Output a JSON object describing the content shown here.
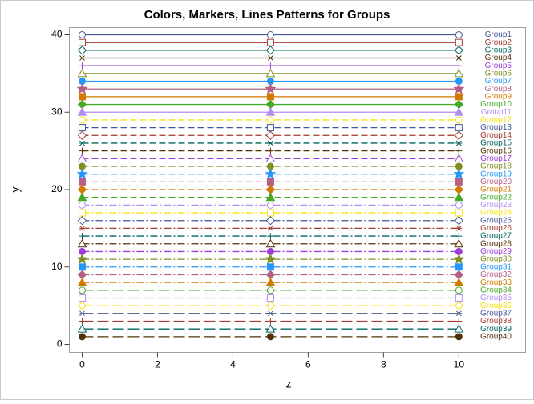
{
  "chart_data": {
    "type": "line",
    "title": "Colors, Markers, Lines Patterns for Groups",
    "x_label": "z",
    "y_label": "y",
    "x": [
      0,
      5,
      10
    ],
    "xlim": [
      -0.34,
      11.77
    ],
    "ylim": [
      -1.03,
      40.93
    ],
    "xticks": [
      0,
      2,
      4,
      6,
      8,
      10
    ],
    "yticks": [
      0,
      10,
      20,
      30,
      40
    ],
    "series": [
      {
        "name": "Group1",
        "color": "#445694",
        "values": [
          40,
          40,
          40
        ]
      },
      {
        "name": "Group2",
        "color": "#A23A2E",
        "values": [
          39,
          39,
          39
        ]
      },
      {
        "name": "Group3",
        "color": "#01665E",
        "values": [
          38,
          38,
          38
        ]
      },
      {
        "name": "Group4",
        "color": "#543005",
        "values": [
          37,
          37,
          37
        ]
      },
      {
        "name": "Group5",
        "color": "#9D3CDB",
        "values": [
          36,
          36,
          36
        ]
      },
      {
        "name": "Group6",
        "color": "#7F8E1F",
        "values": [
          35,
          35,
          35
        ]
      },
      {
        "name": "Group7",
        "color": "#2597FA",
        "values": [
          34,
          34,
          34
        ]
      },
      {
        "name": "Group8",
        "color": "#B26084",
        "values": [
          33,
          33,
          33
        ]
      },
      {
        "name": "Group9",
        "color": "#D17800",
        "values": [
          32,
          32,
          32
        ]
      },
      {
        "name": "Group10",
        "color": "#47A82A",
        "values": [
          31,
          31,
          31
        ]
      },
      {
        "name": "Group11",
        "color": "#B38EF3",
        "values": [
          30,
          30,
          30
        ]
      },
      {
        "name": "Group12",
        "color": "#F9E10C",
        "values": [
          29,
          29,
          29
        ]
      },
      {
        "name": "Group13",
        "color": "#445694",
        "values": [
          28,
          28,
          28
        ]
      },
      {
        "name": "Group14",
        "color": "#A23A2E",
        "values": [
          27,
          27,
          27
        ]
      },
      {
        "name": "Group15",
        "color": "#01665E",
        "values": [
          26,
          26,
          26
        ]
      },
      {
        "name": "Group16",
        "color": "#543005",
        "values": [
          25,
          25,
          25
        ]
      },
      {
        "name": "Group17",
        "color": "#9D3CDB",
        "values": [
          24,
          24,
          24
        ]
      },
      {
        "name": "Group18",
        "color": "#7F8E1F",
        "values": [
          23,
          23,
          23
        ]
      },
      {
        "name": "Group19",
        "color": "#2597FA",
        "values": [
          22,
          22,
          22
        ]
      },
      {
        "name": "Group20",
        "color": "#B26084",
        "values": [
          21,
          21,
          21
        ]
      },
      {
        "name": "Group21",
        "color": "#D17800",
        "values": [
          20,
          20,
          20
        ]
      },
      {
        "name": "Group22",
        "color": "#47A82A",
        "values": [
          19,
          19,
          19
        ]
      },
      {
        "name": "Group23",
        "color": "#B38EF3",
        "values": [
          18,
          18,
          18
        ]
      },
      {
        "name": "Group24",
        "color": "#F9E10C",
        "values": [
          17,
          17,
          17
        ]
      },
      {
        "name": "Group25",
        "color": "#445694",
        "values": [
          16,
          16,
          16
        ]
      },
      {
        "name": "Group26",
        "color": "#A23A2E",
        "values": [
          15,
          15,
          15
        ]
      },
      {
        "name": "Group27",
        "color": "#01665E",
        "values": [
          14,
          14,
          14
        ]
      },
      {
        "name": "Group28",
        "color": "#543005",
        "values": [
          13,
          13,
          13
        ]
      },
      {
        "name": "Group29",
        "color": "#9D3CDB",
        "values": [
          12,
          12,
          12
        ]
      },
      {
        "name": "Group30",
        "color": "#7F8E1F",
        "values": [
          11,
          11,
          11
        ]
      },
      {
        "name": "Group31",
        "color": "#2597FA",
        "values": [
          10,
          10,
          10
        ]
      },
      {
        "name": "Group32",
        "color": "#B26084",
        "values": [
          9,
          9,
          9
        ]
      },
      {
        "name": "Group33",
        "color": "#D17800",
        "values": [
          8,
          8,
          8
        ]
      },
      {
        "name": "Group34",
        "color": "#47A82A",
        "values": [
          7,
          7,
          7
        ]
      },
      {
        "name": "Group35",
        "color": "#B38EF3",
        "values": [
          6,
          6,
          6
        ]
      },
      {
        "name": "Group36",
        "color": "#F9E10C",
        "values": [
          5,
          5,
          5
        ]
      },
      {
        "name": "Group37",
        "color": "#445694",
        "values": [
          4,
          4,
          4
        ]
      },
      {
        "name": "Group38",
        "color": "#A23A2E",
        "values": [
          3,
          3,
          3
        ]
      },
      {
        "name": "Group39",
        "color": "#01665E",
        "values": [
          2,
          2,
          2
        ]
      },
      {
        "name": "Group40",
        "color": "#543005",
        "values": [
          1,
          1,
          1
        ]
      }
    ]
  }
}
